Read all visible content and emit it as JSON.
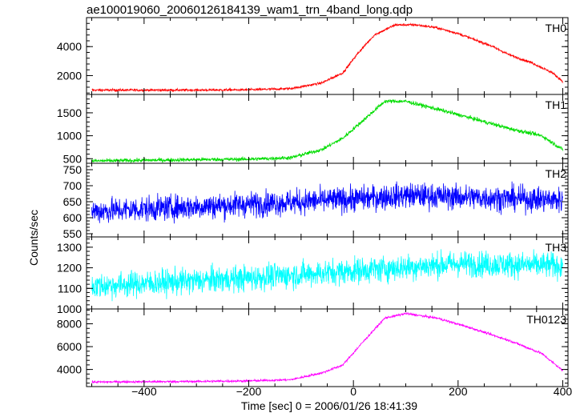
{
  "chart_data": {
    "type": "line",
    "title": "ae100019060_20060126184139_wam1_trn_4band_long.qdp",
    "xlabel": "Time [sec] 0 = 2006/01/26 18:41:39",
    "ylabel": "Counts/sec",
    "xlim": [
      -510,
      410
    ],
    "xticks": [
      -400,
      -200,
      0,
      200,
      400
    ],
    "panels": [
      {
        "name": "TH0",
        "color": "#ff0000",
        "ylim": [
          700,
          6000
        ],
        "yticks": [
          2000,
          4000
        ],
        "noise": 60,
        "profile": [
          [
            -500,
            1000
          ],
          [
            -300,
            1000
          ],
          [
            -200,
            1020
          ],
          [
            -120,
            1100
          ],
          [
            -60,
            1500
          ],
          [
            -20,
            2200
          ],
          [
            10,
            3600
          ],
          [
            40,
            4800
          ],
          [
            80,
            5500
          ],
          [
            120,
            5500
          ],
          [
            160,
            5300
          ],
          [
            200,
            4900
          ],
          [
            260,
            4100
          ],
          [
            300,
            3400
          ],
          [
            340,
            2900
          ],
          [
            380,
            2200
          ],
          [
            400,
            1600
          ]
        ]
      },
      {
        "name": "TH1",
        "color": "#00dd00",
        "ylim": [
          400,
          1900
        ],
        "yticks": [
          500,
          1000,
          1500
        ],
        "noise": 30,
        "profile": [
          [
            -500,
            450
          ],
          [
            -300,
            480
          ],
          [
            -200,
            490
          ],
          [
            -120,
            520
          ],
          [
            -60,
            700
          ],
          [
            -20,
            950
          ],
          [
            20,
            1350
          ],
          [
            60,
            1750
          ],
          [
            100,
            1750
          ],
          [
            160,
            1580
          ],
          [
            220,
            1400
          ],
          [
            300,
            1150
          ],
          [
            360,
            1000
          ],
          [
            400,
            700
          ]
        ]
      },
      {
        "name": "TH2",
        "color": "#0000ff",
        "ylim": [
          540,
          770
        ],
        "yticks": [
          550,
          600,
          650,
          700,
          750
        ],
        "noise": 28,
        "profile": [
          [
            -500,
            620
          ],
          [
            -200,
            642
          ],
          [
            0,
            658
          ],
          [
            100,
            670
          ],
          [
            200,
            665
          ],
          [
            400,
            655
          ]
        ]
      },
      {
        "name": "TH3",
        "color": "#00ffff",
        "ylim": [
          1000,
          1350
        ],
        "yticks": [
          1000,
          1100,
          1200,
          1300
        ],
        "noise": 45,
        "profile": [
          [
            -500,
            1110
          ],
          [
            -200,
            1150
          ],
          [
            0,
            1185
          ],
          [
            200,
            1220
          ],
          [
            400,
            1210
          ]
        ]
      },
      {
        "name": "TH0123",
        "color": "#ff00ff",
        "ylim": [
          2500,
          9300
        ],
        "yticks": [
          4000,
          6000,
          8000
        ],
        "noise": 70,
        "profile": [
          [
            -500,
            2900
          ],
          [
            -300,
            2950
          ],
          [
            -200,
            3000
          ],
          [
            -120,
            3100
          ],
          [
            -60,
            3700
          ],
          [
            -20,
            4400
          ],
          [
            20,
            6500
          ],
          [
            60,
            8500
          ],
          [
            100,
            8900
          ],
          [
            160,
            8500
          ],
          [
            220,
            7700
          ],
          [
            300,
            6500
          ],
          [
            360,
            5400
          ],
          [
            400,
            3900
          ]
        ]
      }
    ]
  }
}
